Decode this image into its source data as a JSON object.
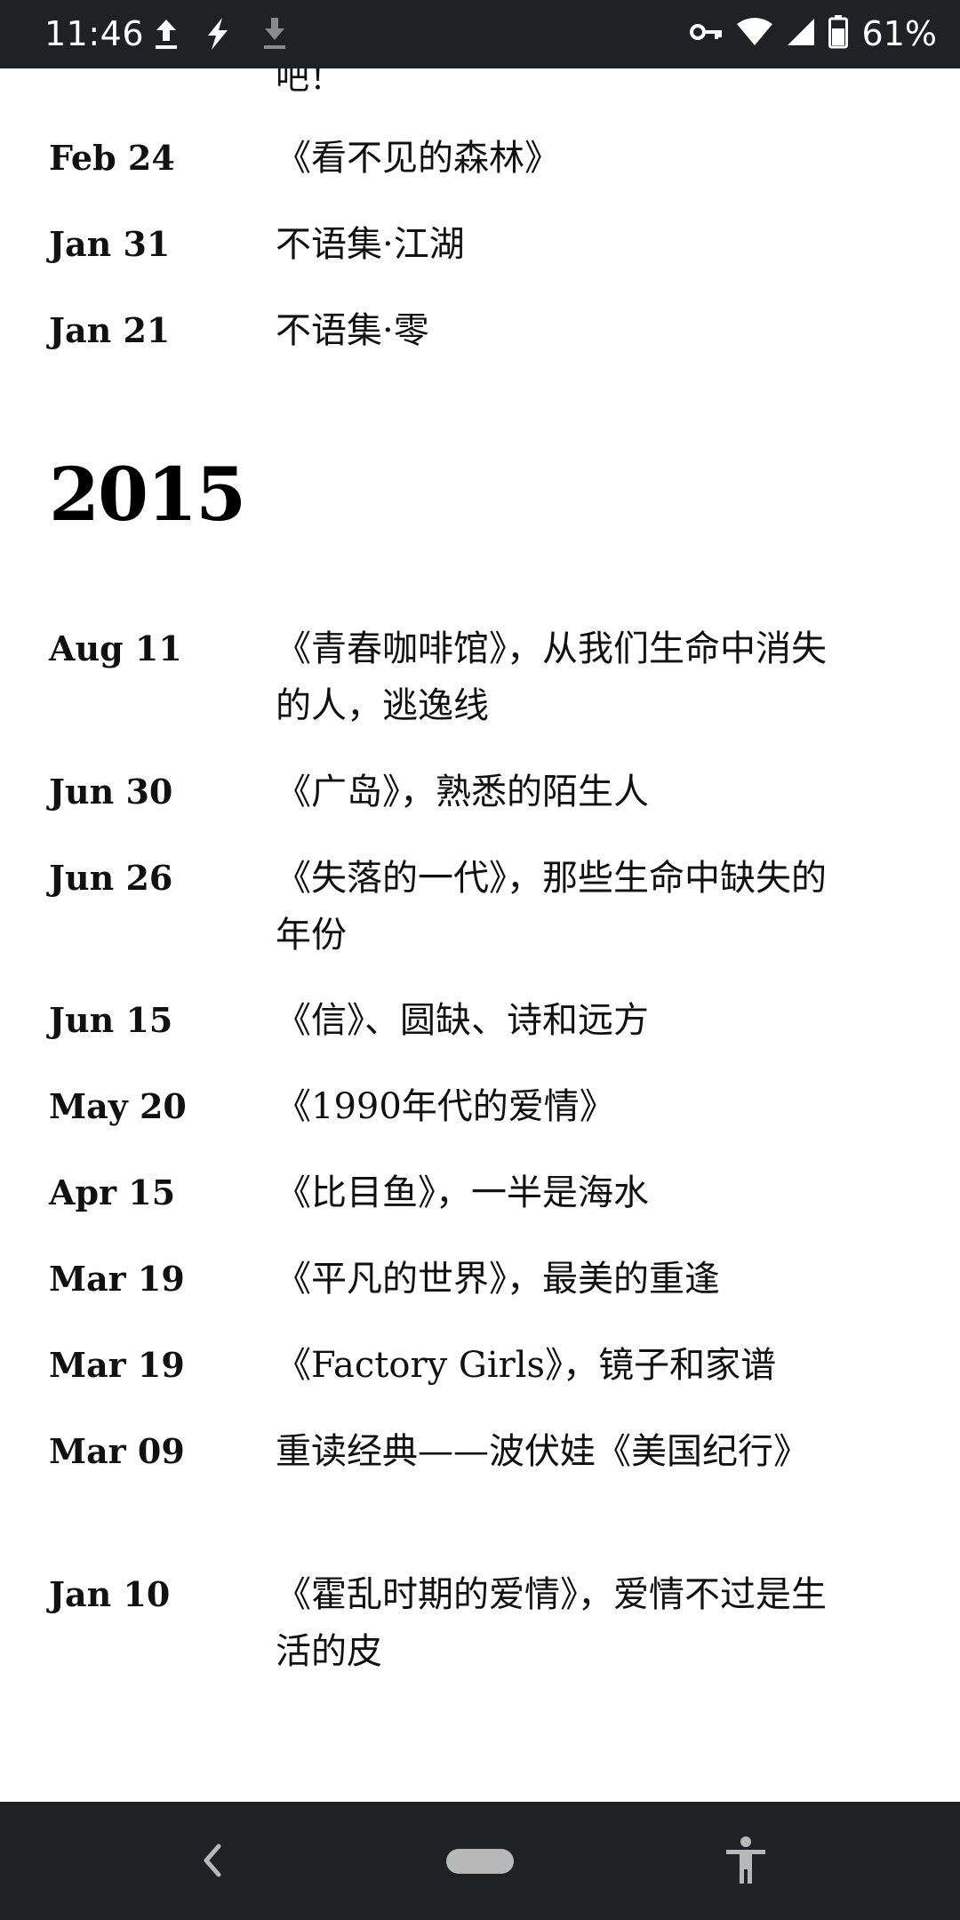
{
  "status_bar": {
    "time": "11:46",
    "battery_pct": "61%",
    "icons": [
      "upload-icon",
      "flash-icon",
      "download-icon",
      "vpn-key-icon",
      "wifi-icon",
      "signal-icon",
      "battery-icon"
    ]
  },
  "timeline": {
    "clipped_text": "吧！",
    "entries_2016": [
      {
        "date": "Feb 24",
        "title": "《看不见的森林》"
      },
      {
        "date": "Jan 31",
        "title": "不语集·江湖"
      },
      {
        "date": "Jan 21",
        "title": "不语集·零"
      }
    ],
    "year_2015": "2015",
    "entries_2015": [
      {
        "date": "Aug 11",
        "title": "《青春咖啡馆》，从我们生命中消失的人，逃逸线"
      },
      {
        "date": "Jun 30",
        "title": "《广岛》，熟悉的陌生人"
      },
      {
        "date": "Jun 26",
        "title": "《失落的一代》，那些生命中缺失的年份"
      },
      {
        "date": "Jun 15",
        "title": "《信》、圆缺、诗和远方"
      },
      {
        "date": "May 20",
        "title": "《1990年代的爱情》"
      },
      {
        "date": "Apr 15",
        "title": "《比目鱼》，一半是海水"
      },
      {
        "date": "Mar 19",
        "title": "《平凡的世界》，最美的重逢"
      },
      {
        "date": "Mar 19",
        "title": "《Factory Girls》，镜子和家谱"
      },
      {
        "date": "Mar 09",
        "title": "重读经典——波伏娃《美国纪行》"
      },
      {
        "date": "Jan 10",
        "title": "《霍乱时期的爱情》，爱情不过是生活的皮"
      }
    ]
  },
  "nav_bar": {
    "icons": [
      "back-icon",
      "home-pill",
      "accessibility-icon"
    ]
  },
  "colors": {
    "system_bar": "#202124",
    "text": "#111111",
    "background": "#ffffff"
  }
}
